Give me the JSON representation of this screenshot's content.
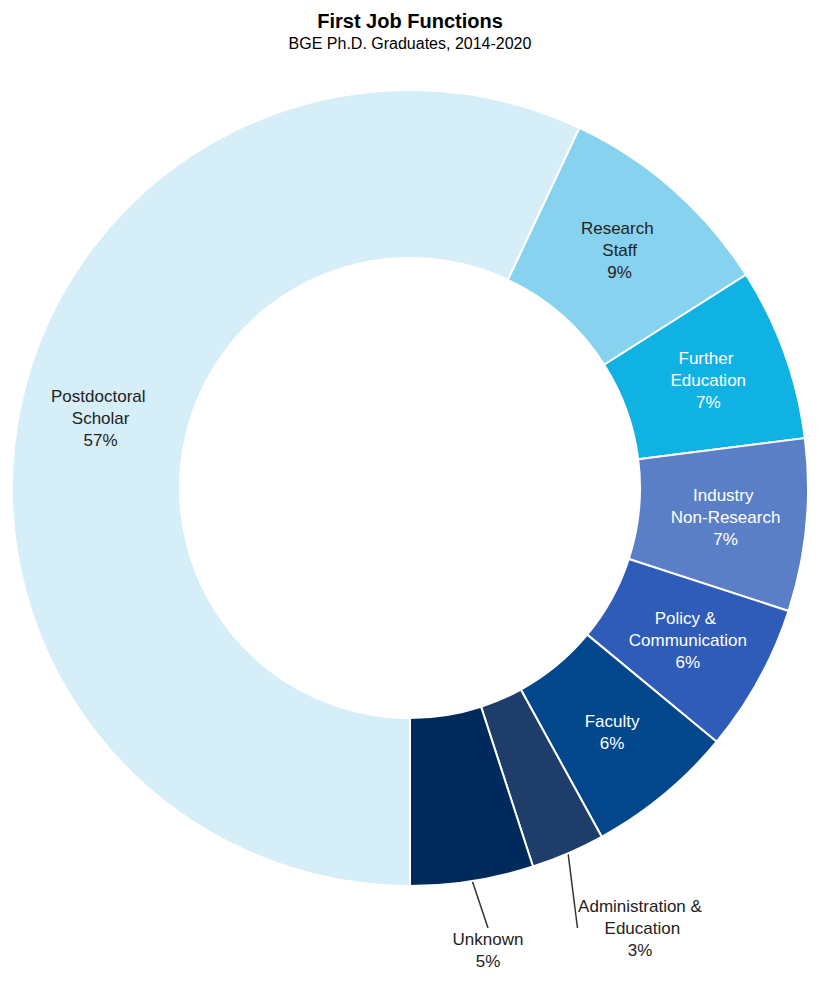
{
  "chart_data": {
    "type": "pie",
    "title": "First Job Functions",
    "subtitle": "BGE Ph.D. Graduates, 2014-2020",
    "categories": [
      "Postdoctoral Scholar",
      "Research Staff",
      "Further Education",
      "Industry Non-Research",
      "Policy & Communication",
      "Faculty",
      "Administration & Education",
      "Unknown"
    ],
    "values": [
      57,
      9,
      7,
      7,
      6,
      6,
      3,
      5
    ],
    "value_labels": [
      "57%",
      "9%",
      "7%",
      "7%",
      "6%",
      "6%",
      "3%",
      "5%"
    ],
    "colors": [
      "#d6eef8",
      "#87d3ef",
      "#10b2e4",
      "#5a7fc7",
      "#2f5cb8",
      "#02478c",
      "#1e3d6b",
      "#012a5c"
    ],
    "data_labels": true
  }
}
